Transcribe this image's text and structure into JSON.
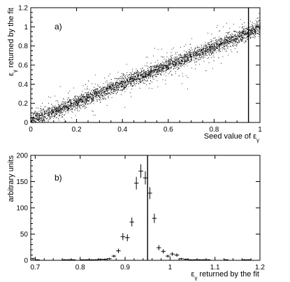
{
  "chart_data": [
    {
      "type": "scatter",
      "panel_label": "a)",
      "xlabel": "Seed value of ε",
      "xlabel_sub": "γ",
      "ylabel": "ε",
      "ylabel_sub": "γ",
      "ylabel_rest": " returned by the fit",
      "xlim": [
        0,
        1
      ],
      "ylim": [
        0,
        1.2
      ],
      "x_ticks": [
        0,
        0.2,
        0.4,
        0.6,
        0.8,
        1
      ],
      "x_tick_labels": [
        "0",
        "0.2",
        "0.4",
        "0.6",
        "0.8",
        "1"
      ],
      "y_ticks": [
        0,
        0.2,
        0.4,
        0.6,
        0.8,
        1,
        1.2
      ],
      "y_tick_labels": [
        "0",
        "0.2",
        "0.4",
        "0.6",
        "0.8",
        "1",
        "1.2"
      ],
      "trend": {
        "slope": 0.97,
        "intercept": 0.02
      },
      "vertical_line_x": 0.95,
      "grid": false,
      "color": "#000000"
    },
    {
      "type": "histogram",
      "panel_label": "b)",
      "xlabel": "ε",
      "xlabel_sub": "γ",
      "xlabel_rest": " returned by  the fit",
      "ylabel": "arbitrary units",
      "xlim": [
        0.69,
        1.2
      ],
      "ylim": [
        0,
        200
      ],
      "x_ticks": [
        0.7,
        0.8,
        0.9,
        1,
        1.1,
        1.2
      ],
      "x_tick_labels": [
        "0.7",
        "0.8",
        "0.9",
        "1",
        "1.1",
        "1.2"
      ],
      "y_ticks": [
        0,
        50,
        100,
        150,
        200
      ],
      "y_tick_labels": [
        "0",
        "50",
        "100",
        "150",
        "200"
      ],
      "bin_width": 0.01,
      "vertical_line_x": 0.95,
      "points": [
        {
          "x": 0.695,
          "y": 3,
          "err": 1.7
        },
        {
          "x": 0.705,
          "y": 1,
          "err": 1
        },
        {
          "x": 0.765,
          "y": 1,
          "err": 1
        },
        {
          "x": 0.775,
          "y": 1,
          "err": 1
        },
        {
          "x": 0.785,
          "y": 1,
          "err": 1
        },
        {
          "x": 0.805,
          "y": 1,
          "err": 1
        },
        {
          "x": 0.815,
          "y": 1,
          "err": 1
        },
        {
          "x": 0.825,
          "y": 1,
          "err": 1
        },
        {
          "x": 0.835,
          "y": 1,
          "err": 1
        },
        {
          "x": 0.845,
          "y": 2,
          "err": 1.4
        },
        {
          "x": 0.855,
          "y": 2,
          "err": 1.4
        },
        {
          "x": 0.865,
          "y": 3,
          "err": 1.7
        },
        {
          "x": 0.875,
          "y": 8,
          "err": 2.8
        },
        {
          "x": 0.885,
          "y": 18,
          "err": 4.2
        },
        {
          "x": 0.895,
          "y": 45,
          "err": 6.7
        },
        {
          "x": 0.905,
          "y": 43,
          "err": 6.6
        },
        {
          "x": 0.915,
          "y": 73,
          "err": 8.5
        },
        {
          "x": 0.925,
          "y": 147,
          "err": 12
        },
        {
          "x": 0.935,
          "y": 170,
          "err": 13
        },
        {
          "x": 0.945,
          "y": 157,
          "err": 12.5
        },
        {
          "x": 0.955,
          "y": 128,
          "err": 11.3
        },
        {
          "x": 0.965,
          "y": 80,
          "err": 8.9
        },
        {
          "x": 0.975,
          "y": 24,
          "err": 4.9
        },
        {
          "x": 0.985,
          "y": 17,
          "err": 4.1
        },
        {
          "x": 0.995,
          "y": 8,
          "err": 2.8
        },
        {
          "x": 1.005,
          "y": 12,
          "err": 3.5
        },
        {
          "x": 1.015,
          "y": 10,
          "err": 3.2
        },
        {
          "x": 1.025,
          "y": 3,
          "err": 1.7
        },
        {
          "x": 1.035,
          "y": 2,
          "err": 1.4
        },
        {
          "x": 1.045,
          "y": 1,
          "err": 1
        },
        {
          "x": 1.055,
          "y": 1,
          "err": 1
        },
        {
          "x": 1.065,
          "y": 1,
          "err": 1
        },
        {
          "x": 1.075,
          "y": 1,
          "err": 1
        },
        {
          "x": 1.085,
          "y": 1,
          "err": 1
        },
        {
          "x": 1.125,
          "y": 1,
          "err": 1
        },
        {
          "x": 1.165,
          "y": 1,
          "err": 1
        },
        {
          "x": 1.175,
          "y": 1,
          "err": 1
        }
      ],
      "grid": false,
      "color": "#000000"
    }
  ]
}
